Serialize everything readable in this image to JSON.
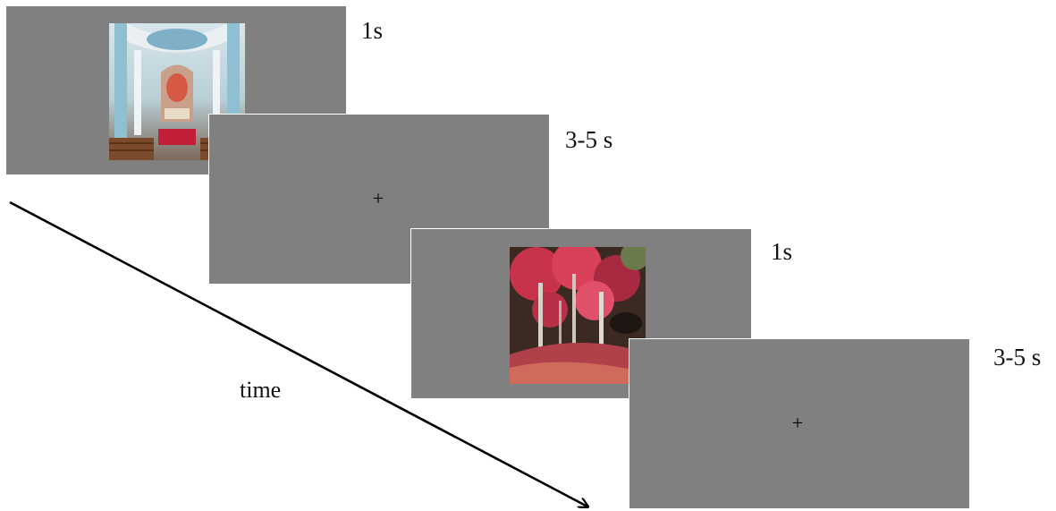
{
  "trials": [
    {
      "type": "scene",
      "scene": "church interior",
      "duration_label": "1s"
    },
    {
      "type": "fixation",
      "symbol": "+",
      "duration_label": "3-5 s"
    },
    {
      "type": "scene",
      "scene": "autumn forest",
      "duration_label": "1s"
    },
    {
      "type": "fixation",
      "symbol": "+",
      "duration_label": "3-5 s"
    }
  ],
  "axis": {
    "label": "time"
  },
  "colors": {
    "screen": "#808080",
    "arrow": "#000000"
  }
}
